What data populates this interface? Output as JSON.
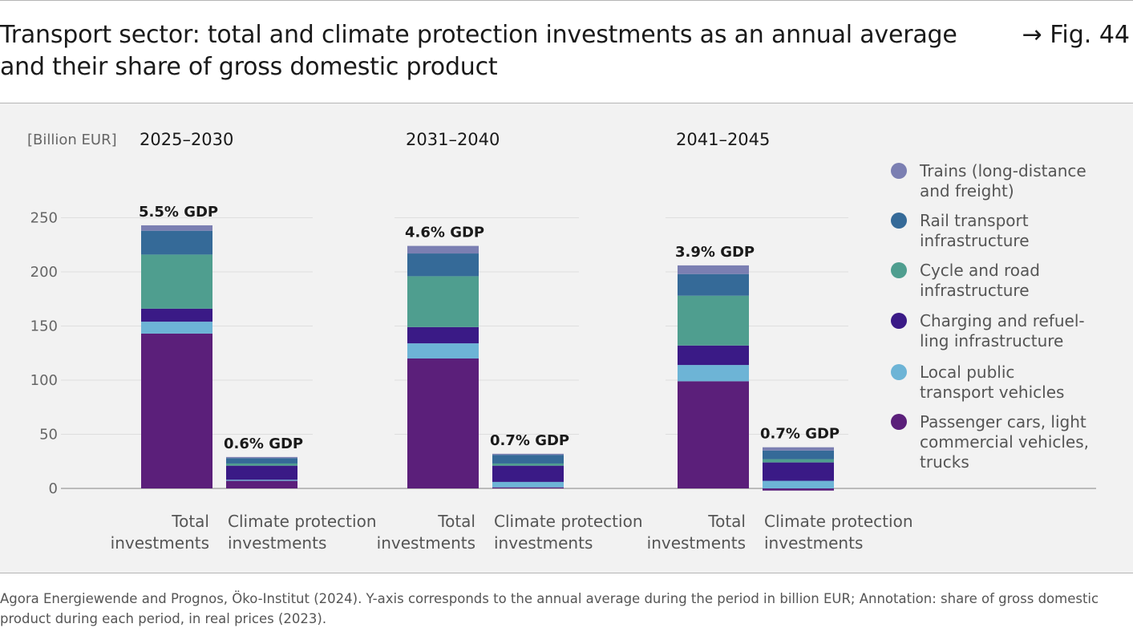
{
  "header": {
    "title": "Transport sector: total and climate protection investments as an annual average and their share of gross domestic product",
    "figure_ref": "→ Fig. 44"
  },
  "chart_data": {
    "type": "bar",
    "stacked": true,
    "unit_label": "[Billion EUR]",
    "ylim": [
      0,
      250
    ],
    "yticks": [
      0,
      50,
      100,
      150,
      200,
      250
    ],
    "grid": true,
    "legend_position": "right",
    "category_labels": [
      "Total investments",
      "Climate protection investments"
    ],
    "gdp_suffix": "GDP",
    "series": [
      {
        "name": "Passenger cars, light commercial vehicles, trucks",
        "color": "#5b1f7a"
      },
      {
        "name": "Local public transport vehicles",
        "color": "#6db4d6"
      },
      {
        "name": "Charging and refuel-ling infrastructure",
        "color": "#3a1a86"
      },
      {
        "name": "Cycle and road infrastructure",
        "color": "#4f9e8f"
      },
      {
        "name": "Rail transport infrastructure",
        "color": "#356a98"
      },
      {
        "name": "Trains (long-distance and freight)",
        "color": "#7b7fb2"
      }
    ],
    "legend_order": [
      5,
      4,
      3,
      2,
      1,
      0
    ],
    "legend_lines": [
      [
        "Trains (long-distance",
        "and freight)"
      ],
      [
        "Rail transport",
        "infrastructure"
      ],
      [
        "Cycle and road",
        "infrastructure"
      ],
      [
        "Charging and refuel-",
        "ling infrastructure"
      ],
      [
        "Local public",
        "transport vehicles"
      ],
      [
        "Passenger cars, light",
        "commercial vehicles,",
        "trucks"
      ]
    ],
    "periods": [
      {
        "label": "2025–2030",
        "bars": [
          {
            "category": "Total investments",
            "values": [
              143,
              11,
              12,
              50,
              22,
              5
            ],
            "gdp_share": "5.5%"
          },
          {
            "category": "Climate protection investments",
            "values": [
              7,
              1,
              13,
              2,
              5,
              1
            ],
            "gdp_share": "0.6%"
          }
        ]
      },
      {
        "label": "2031–2040",
        "bars": [
          {
            "category": "Total investments",
            "values": [
              120,
              14,
              15,
              47,
              21,
              7
            ],
            "gdp_share": "4.6%"
          },
          {
            "category": "Climate protection investments",
            "values": [
              1,
              5,
              15,
              2,
              8,
              1
            ],
            "gdp_share": "0.7%"
          }
        ]
      },
      {
        "label": "2041–2045",
        "bars": [
          {
            "category": "Total investments",
            "values": [
              99,
              15,
              18,
              46,
              20,
              8
            ],
            "gdp_share": "3.9%"
          },
          {
            "category": "Climate protection investments",
            "values": [
              -2,
              7,
              17,
              3,
              8,
              3
            ],
            "gdp_share": "0.7%"
          }
        ]
      }
    ]
  },
  "source": {
    "text": "Agora Energiewende and Prognos, Öko-Institut (2024). Y-axis corresponds to the annual average during the period in billion EUR; Annotation: share of gross domestic product during each period, in real prices (2023)."
  }
}
